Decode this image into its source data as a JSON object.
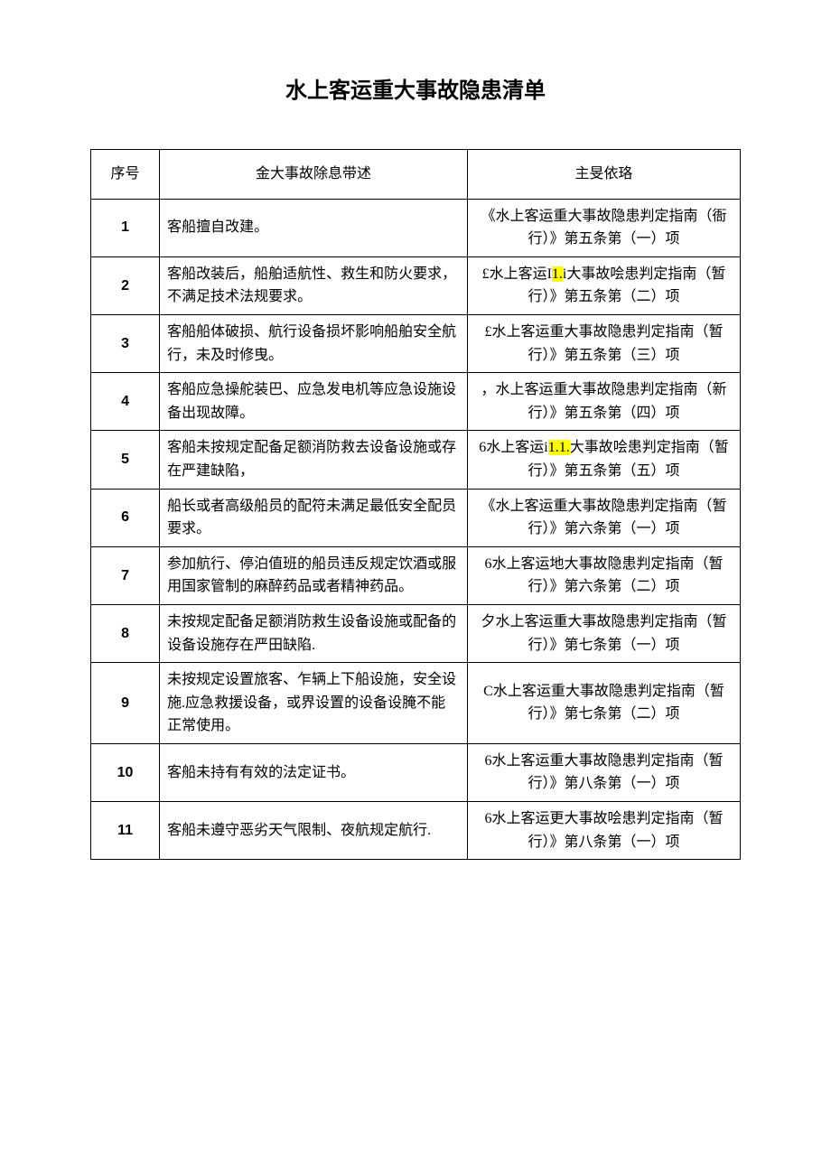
{
  "title": "水上客运重大事故隐患清单",
  "headers": {
    "num": "序号",
    "desc": "金大事故除息带述",
    "basis": "主旻依珞"
  },
  "rows": [
    {
      "num": "1",
      "desc": "客船擅自改建。",
      "basis": "《水上客运重大事故隐患判定指南（衙行）》第五条第（一）项"
    },
    {
      "num": "2",
      "desc": "客船改装后，船舶适航性、救生和防火要求，不满足技术法规要求。",
      "basis_prefix": "£水上客运I",
      "basis_hl": "1.",
      "basis_suffix": "i大事故哙患判定指南（暂行）》第五条第（二）项"
    },
    {
      "num": "3",
      "desc": "客船船体破损、航行设备损坏影响船舶安全航行，未及时修曳。",
      "basis": "£水上客运重大事故隐患判定指南（暂行）》第五条第（三）项"
    },
    {
      "num": "4",
      "desc": "客船应急操舵装巴、应急发电机等应急设施设备出现故障。",
      "basis": "，水上客运重大事故隐患判定指南（新行）》第五条第（四）项"
    },
    {
      "num": "5",
      "desc": "客船未按规定配备足额消防救去设备设施或存在严建缺陷，",
      "basis_prefix": "6水上客运i",
      "basis_hl": "1.1.",
      "basis_suffix": "大事故哙患判定指南（暂行）》第五条第（五）项"
    },
    {
      "num": "6",
      "desc": "船长或者高级船员的配符未满足最低安全配员要求。",
      "basis": "《水上客运重大事故隐患判定指南（暂行）》第六条第（一）项"
    },
    {
      "num": "7",
      "desc": "参加航行、停泊值班的船员违反规定饮酒或服用国家管制的麻醉药品或者精神药品。",
      "basis": "6水上客运地大事故隐患判定指南（暂行）》第六条第（二）项"
    },
    {
      "num": "8",
      "desc": "未按规定配备足额消防救生设备设施或配备的设备设施存在严田缺陷.",
      "basis": "夕水上客运重大事故隐患判定指南（暂行）》第七条第（一）项"
    },
    {
      "num": "9",
      "desc": "未按规定设置旅客、乍辆上下船设施，安全设施.应急救援设备，或界设置的设备设腌不能正常使用。",
      "basis": "C水上客运重大事故隐患判定指南（暂行）》第七条第（二）项"
    },
    {
      "num": "10",
      "desc": "客船未持有有效的法定证书。",
      "basis": "6水上客运重大事故隐患判定指南（暂行）》第八条第（一）项"
    },
    {
      "num": "11",
      "desc": "客船未遵守恶劣天气限制、夜航规定航行.",
      "basis": "6水上客运更大事故哙患判定指南（暂行）》第八条第（一）项"
    }
  ]
}
